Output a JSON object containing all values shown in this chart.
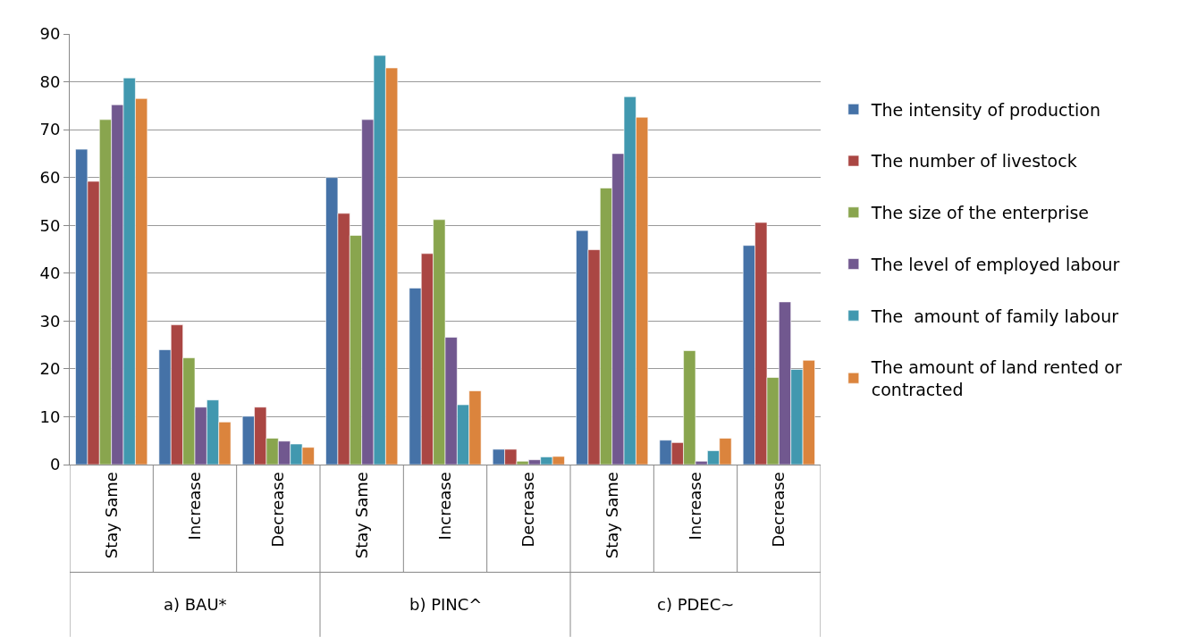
{
  "chart_data": {
    "type": "bar",
    "categories": [
      "Stay Same",
      "Increase",
      "Decrease",
      "Stay Same",
      "Increase",
      "Decrease",
      "Stay Same",
      "Increase",
      "Decrease"
    ],
    "annotations": [
      "a) BAU*",
      "b) PINC^",
      "c) PDEC~"
    ],
    "series": [
      {
        "name": "The intensity of production",
        "color": "#4572a7",
        "values": [
          65.9,
          24.0,
          10.1,
          60.0,
          36.9,
          3.2,
          48.9,
          5.1,
          45.8
        ]
      },
      {
        "name": "The number of livestock",
        "color": "#aa4643",
        "values": [
          59.2,
          29.2,
          12.0,
          52.5,
          44.1,
          3.2,
          44.9,
          4.6,
          50.6
        ]
      },
      {
        "name": "The size of the enterprise",
        "color": "#89a54e",
        "values": [
          72.1,
          22.3,
          5.5,
          47.9,
          51.2,
          0.7,
          57.8,
          23.8,
          18.2
        ]
      },
      {
        "name": "The level of employed labour",
        "color": "#71588f",
        "values": [
          75.2,
          12.0,
          4.9,
          72.1,
          26.6,
          1.0,
          65.0,
          0.7,
          34.0
        ]
      },
      {
        "name": "The  amount of family labour",
        "color": "#4198af",
        "values": [
          80.8,
          13.5,
          4.3,
          85.5,
          12.5,
          1.6,
          76.9,
          2.9,
          19.9
        ]
      },
      {
        "name": "The amount of land rented or contracted",
        "color": "#db843d",
        "values": [
          76.5,
          8.9,
          3.6,
          82.9,
          15.4,
          1.7,
          72.6,
          5.5,
          21.8
        ]
      }
    ],
    "ylim": [
      0,
      90
    ],
    "yticks": [
      0,
      10,
      20,
      30,
      40,
      50,
      60,
      70,
      80,
      90
    ],
    "grid": "y",
    "legend": "right"
  }
}
